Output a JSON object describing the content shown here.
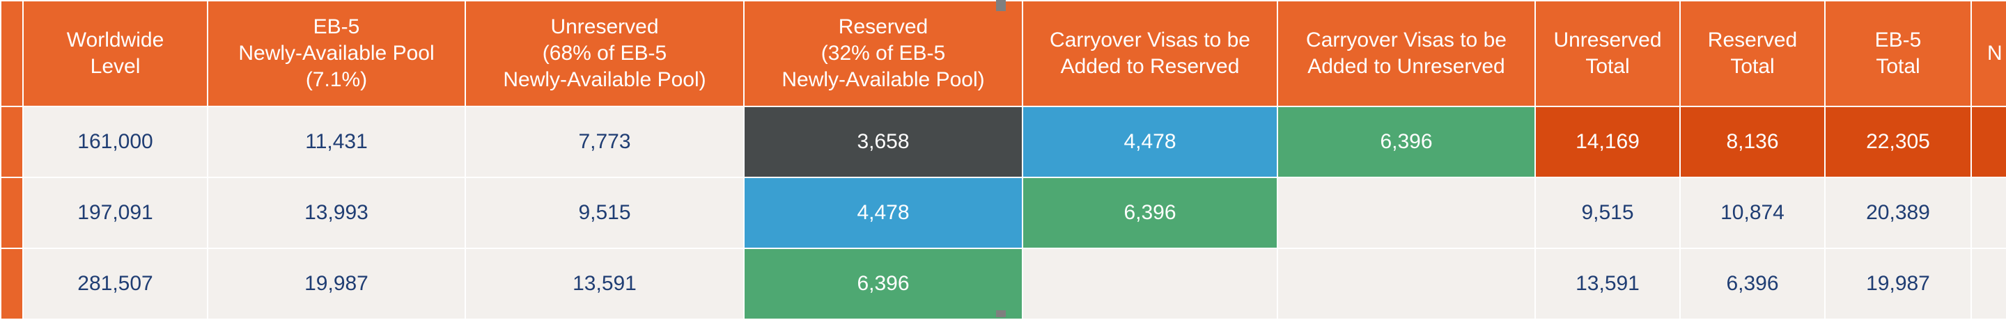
{
  "table": {
    "headers": [
      {
        "lines": [
          "Worldwide",
          "Level"
        ]
      },
      {
        "lines": [
          "EB-5",
          "Newly-Available Pool",
          "(7.1%)"
        ]
      },
      {
        "lines": [
          "Unreserved",
          "(68% of EB-5",
          "Newly-Available Pool)"
        ]
      },
      {
        "lines": [
          "Reserved",
          "(32% of EB-5",
          "Newly-Available Pool)"
        ]
      },
      {
        "lines": [
          "Carryover Visas to be",
          "Added to Reserved"
        ]
      },
      {
        "lines": [
          "Carryover Visas to be",
          "Added to Unreserved"
        ]
      },
      {
        "lines": [
          "Unreserved",
          "Total"
        ]
      },
      {
        "lines": [
          "Reserved",
          "Total"
        ]
      },
      {
        "lines": [
          "EB-5",
          "Total"
        ]
      },
      {
        "lines": [
          "N"
        ]
      }
    ],
    "rows": [
      [
        "161,000",
        "11,431",
        "7,773",
        "3,658",
        "4,478",
        "6,396",
        "14,169",
        "8,136",
        "22,305",
        ""
      ],
      [
        "197,091",
        "13,993",
        "9,515",
        "4,478",
        "6,396",
        "",
        "9,515",
        "10,874",
        "20,389",
        ""
      ],
      [
        "281,507",
        "19,987",
        "13,591",
        "6,396",
        "",
        "",
        "13,591",
        "6,396",
        "19,987",
        ""
      ]
    ]
  },
  "colors": {
    "header_bg": "#e8652a",
    "cell_bg": "#f3f0ed",
    "text_blue": "#1f3d73",
    "highlight_gray": "#464a4b",
    "highlight_blue": "#3a9fd1",
    "highlight_green": "#4ea872",
    "highlight_orange": "#d74a10"
  }
}
